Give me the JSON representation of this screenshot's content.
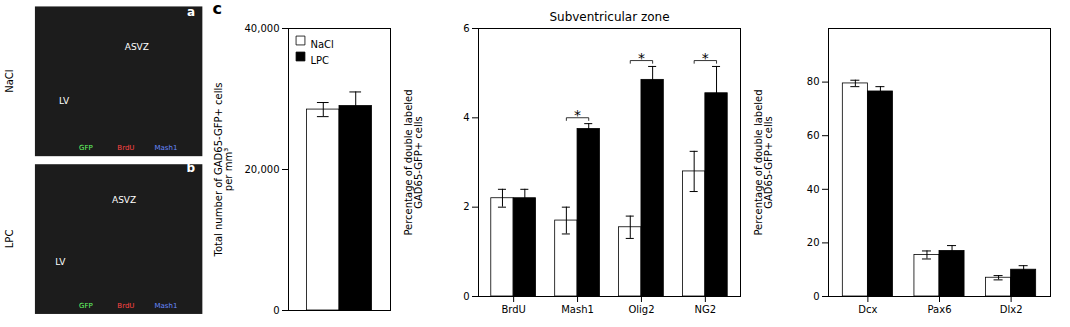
{
  "chart_data": [
    {
      "type": "image",
      "annotations": [
        "a",
        "b",
        "NaCl",
        "LPC",
        "ASVZ",
        "ASVZ",
        "LV",
        "LV",
        "GFP",
        "BrdU",
        "Mash1",
        "GFP",
        "BrdU",
        "Mash1"
      ]
    },
    {
      "type": "bar",
      "ylabel": "Total number of GAD65-GFP+ cells\nper mm³",
      "categories": [
        null
      ],
      "series": [
        {
          "name": "NaCl",
          "color": "white",
          "values": [
            28500
          ],
          "errors": [
            1000
          ]
        },
        {
          "name": "LPC",
          "color": "black",
          "values": [
            29000
          ],
          "errors": [
            2000
          ]
        }
      ],
      "ylim": [
        0,
        40000
      ],
      "yticks": [
        0,
        {
          "value": 20000,
          "label": "20,000"
        },
        {
          "value": 40000,
          "label": "40,000"
        }
      ],
      "legend": "upper left",
      "tick_labels": "y",
      "annotations": [
        "c"
      ]
    },
    {
      "type": "bar",
      "title": "Subventricular zone",
      "ylabel": "Percentage of double labeled\nGAD65-GFP+ cells",
      "categories": [
        "BrdU",
        "Mash1",
        "Olig2",
        "NG2"
      ],
      "series": [
        {
          "name": "NaCl",
          "color": "white",
          "values": [
            2.2,
            1.7,
            1.55,
            2.8
          ],
          "errors": [
            0.2,
            0.3,
            0.25,
            0.45
          ]
        },
        {
          "name": "LPC",
          "color": "black",
          "values": [
            2.2,
            3.75,
            4.85,
            4.55
          ],
          "errors": [
            0.2,
            0.12,
            0.3,
            0.6
          ]
        }
      ],
      "ylim": [
        0,
        6
      ],
      "yticks": [
        0,
        2,
        4,
        6
      ],
      "annotations": [
        {
          "category": "Mash1",
          "text": "*"
        },
        {
          "category": "Olig2",
          "text": "*"
        },
        {
          "category": "NG2",
          "text": "*"
        }
      ]
    },
    {
      "type": "bar",
      "ylabel": "Percentage of double labeled\nGAD65-GFP+ cells",
      "categories": [
        "Dcx",
        "Pax6",
        "Dlx2"
      ],
      "series": [
        {
          "name": "NaCl",
          "color": "white",
          "values": [
            79.5,
            15.5,
            7.0
          ],
          "errors": [
            1.2,
            1.5,
            0.8
          ]
        },
        {
          "name": "LPC",
          "color": "black",
          "values": [
            76.5,
            17.0,
            10.0
          ],
          "errors": [
            1.8,
            2.0,
            1.5
          ]
        }
      ],
      "ylim": [
        0,
        100
      ],
      "yticks": [
        0,
        20,
        40,
        60,
        80
      ]
    }
  ]
}
